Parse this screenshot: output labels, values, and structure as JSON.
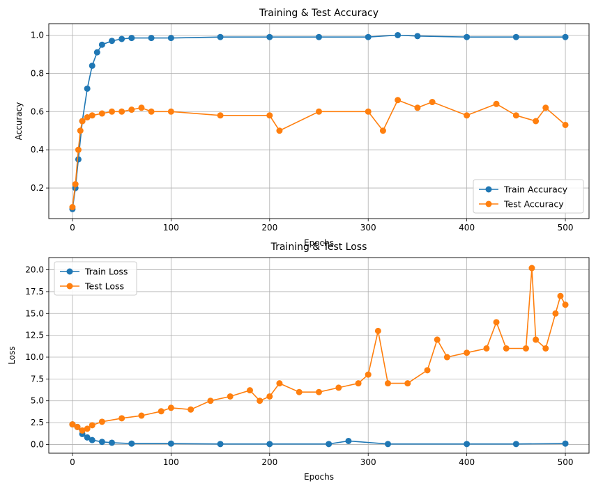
{
  "chart_data": [
    {
      "type": "line",
      "title": "Training & Test Accuracy",
      "xlabel": "Epochs",
      "ylabel": "Accuracy",
      "xlim": [
        -24,
        524
      ],
      "ylim": [
        0.04,
        1.06
      ],
      "xticks": [
        0,
        100,
        200,
        300,
        400,
        500
      ],
      "yticks": [
        0.2,
        0.4,
        0.6,
        0.8,
        1.0
      ],
      "xtick_labels": [
        "0",
        "100",
        "200",
        "300",
        "400",
        "500"
      ],
      "ytick_labels": [
        "0.2",
        "0.4",
        "0.6",
        "0.8",
        "1.0"
      ],
      "grid": true,
      "legend_position": "lower-right",
      "legend": [
        "Train Accuracy",
        "Test Accuracy"
      ],
      "series": [
        {
          "name": "Train Accuracy",
          "color": "#1f77b4",
          "marker": "circle",
          "x": [
            0,
            3,
            6,
            10,
            15,
            20,
            25,
            30,
            40,
            50,
            60,
            80,
            100,
            150,
            200,
            250,
            300,
            330,
            350,
            400,
            450,
            500
          ],
          "values": [
            0.09,
            0.2,
            0.35,
            0.55,
            0.72,
            0.84,
            0.91,
            0.95,
            0.97,
            0.98,
            0.985,
            0.985,
            0.985,
            0.99,
            0.99,
            0.99,
            0.99,
            1.0,
            0.995,
            0.99,
            0.99,
            0.99
          ]
        },
        {
          "name": "Test Accuracy",
          "color": "#ff7f0e",
          "marker": "circle",
          "x": [
            0,
            3,
            6,
            8,
            10,
            15,
            20,
            30,
            40,
            50,
            60,
            70,
            80,
            100,
            150,
            200,
            210,
            250,
            300,
            315,
            330,
            350,
            365,
            400,
            430,
            450,
            470,
            480,
            500
          ],
          "values": [
            0.1,
            0.22,
            0.4,
            0.5,
            0.55,
            0.57,
            0.58,
            0.59,
            0.6,
            0.6,
            0.61,
            0.62,
            0.6,
            0.6,
            0.58,
            0.58,
            0.5,
            0.6,
            0.6,
            0.5,
            0.66,
            0.62,
            0.65,
            0.58,
            0.64,
            0.58,
            0.55,
            0.62,
            0.53
          ]
        }
      ]
    },
    {
      "type": "line",
      "title": "Training & Test Loss",
      "xlabel": "Epochs",
      "ylabel": "Loss",
      "xlim": [
        -24,
        524
      ],
      "ylim": [
        -1.0,
        21.4
      ],
      "xticks": [
        0,
        100,
        200,
        300,
        400,
        500
      ],
      "yticks": [
        0.0,
        2.5,
        5.0,
        7.5,
        10.0,
        12.5,
        15.0,
        17.5,
        20.0
      ],
      "xtick_labels": [
        "0",
        "100",
        "200",
        "300",
        "400",
        "500"
      ],
      "ytick_labels": [
        "0.0",
        "2.5",
        "5.0",
        "7.5",
        "10.0",
        "12.5",
        "15.0",
        "17.5",
        "20.0"
      ],
      "grid": true,
      "legend_position": "upper-left",
      "legend": [
        "Train Loss",
        "Test Loss"
      ],
      "series": [
        {
          "name": "Train Loss",
          "color": "#1f77b4",
          "marker": "circle",
          "x": [
            0,
            5,
            10,
            15,
            20,
            30,
            40,
            60,
            100,
            150,
            200,
            260,
            280,
            320,
            400,
            450,
            500
          ],
          "values": [
            2.3,
            2.0,
            1.2,
            0.8,
            0.5,
            0.3,
            0.2,
            0.1,
            0.1,
            0.05,
            0.05,
            0.05,
            0.4,
            0.05,
            0.05,
            0.05,
            0.1
          ]
        },
        {
          "name": "Test Loss",
          "color": "#ff7f0e",
          "marker": "circle",
          "x": [
            0,
            5,
            10,
            15,
            20,
            30,
            50,
            70,
            90,
            100,
            120,
            140,
            160,
            180,
            190,
            200,
            210,
            230,
            250,
            270,
            290,
            300,
            310,
            320,
            340,
            360,
            370,
            380,
            400,
            420,
            430,
            440,
            460,
            466,
            470,
            480,
            490,
            495,
            500
          ],
          "values": [
            2.3,
            2.0,
            1.6,
            1.8,
            2.2,
            2.6,
            3.0,
            3.3,
            3.8,
            4.2,
            4.0,
            5.0,
            5.5,
            6.2,
            5.0,
            5.5,
            7.0,
            6.0,
            6.0,
            6.5,
            7.0,
            8.0,
            13.0,
            7.0,
            7.0,
            8.5,
            12.0,
            10.0,
            10.5,
            11.0,
            14.0,
            11.0,
            11.0,
            20.2,
            12.0,
            11.0,
            15.0,
            17.0,
            16.0
          ]
        }
      ]
    }
  ]
}
